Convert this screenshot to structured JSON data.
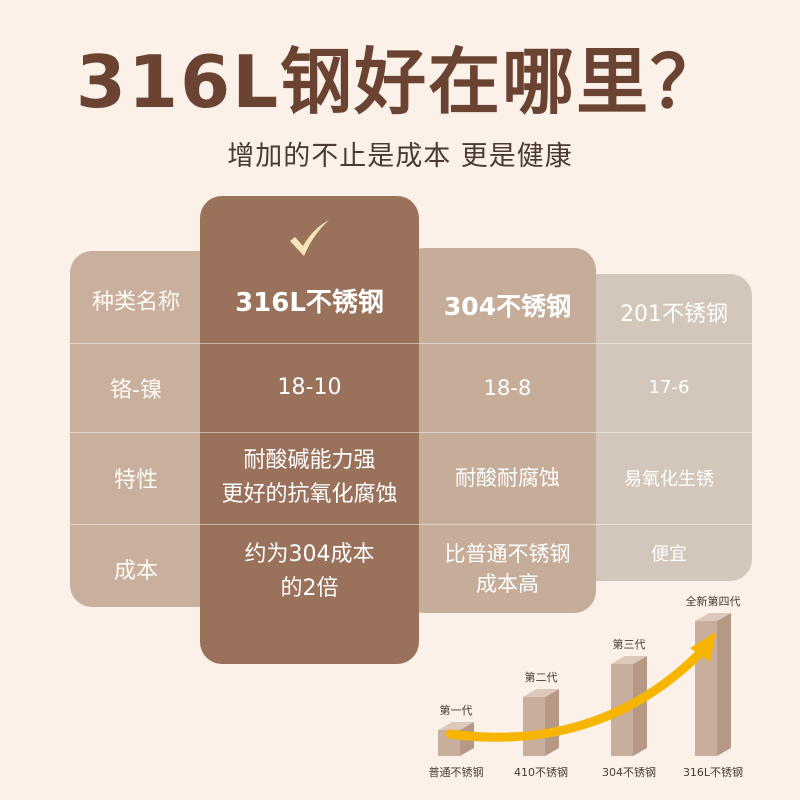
{
  "title": "316L钢好在哪里？",
  "subtitle": "增加的不止是成本 更是健康",
  "table": {
    "row_labels": [
      "种类名称",
      "铬-镍",
      "特性",
      "成本"
    ],
    "columns": [
      {
        "name": "316L不锈钢",
        "ratio": "18-10",
        "feature": [
          "耐酸碱能力强",
          "更好的抗氧化腐蚀"
        ],
        "cost": [
          "约为304成本",
          "的2倍"
        ],
        "selected": true
      },
      {
        "name": "304不锈钢",
        "ratio": "18-8",
        "feature": [
          "耐酸耐腐蚀"
        ],
        "cost": [
          "比普通不锈钢",
          "成本高"
        ],
        "selected": false
      },
      {
        "name": "201不锈钢",
        "ratio": "17-6",
        "feature": [
          "易氧化生锈"
        ],
        "cost": [
          "便宜"
        ],
        "selected": false
      }
    ]
  },
  "chart_data": {
    "type": "bar",
    "title": "",
    "categories": [
      "普通不锈钢",
      "410不锈钢",
      "304不锈钢",
      "316L不锈钢"
    ],
    "values": [
      1,
      2,
      3,
      4
    ],
    "bar_labels": [
      "第一代",
      "第二代",
      "第三代",
      "全新第四代"
    ],
    "trend_arrow": true,
    "colors": {
      "bar": "#c8ae9d",
      "bar_side": "#b59985",
      "bar_top": "#dcc9bb",
      "arrow": "#f7b500"
    }
  },
  "colors": {
    "background": "#fbf1e8",
    "title": "#6b4332",
    "highlight": "#9a725c",
    "check": "#f4e6b8"
  }
}
